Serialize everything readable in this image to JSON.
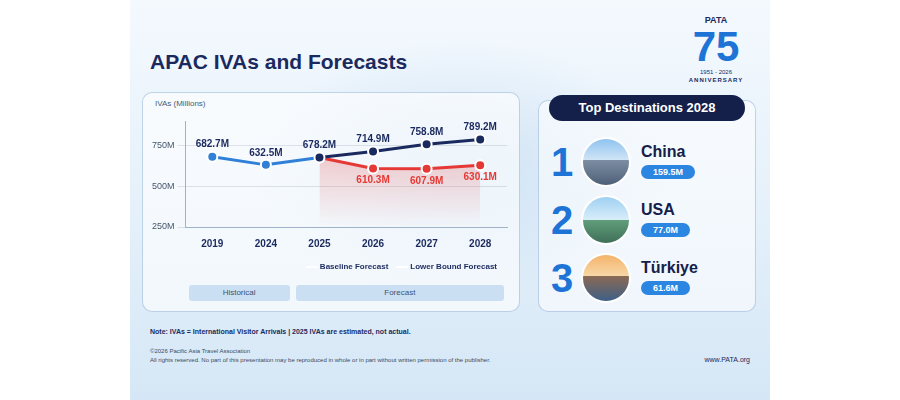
{
  "chart_data": {
    "type": "line",
    "title": "APAC IVAs and Forecasts",
    "y_label": "IVAs (Millions)",
    "categories": [
      "2019",
      "2024",
      "2025",
      "2026",
      "2027",
      "2028"
    ],
    "series": [
      {
        "name": "Baseline Forecast",
        "color": "#1b2a5e",
        "values": [
          682.7,
          632.5,
          678.2,
          714.9,
          758.8,
          789.2
        ],
        "value_labels": [
          "682.7M",
          "632.5M",
          "678.2M",
          "714.9M",
          "758.8M",
          "789.2M"
        ]
      },
      {
        "name": "Lower Bound Forecast",
        "color": "#e53935",
        "values": [
          null,
          null,
          678.2,
          610.3,
          607.9,
          630.1
        ],
        "value_labels": [
          null,
          null,
          null,
          "610.3M",
          "607.9M",
          "630.1M"
        ]
      }
    ],
    "periods": [
      {
        "label": "Historical",
        "categories": [
          "2019",
          "2024"
        ],
        "color": "#2f80d6"
      },
      {
        "label": "Forecast",
        "categories": [
          "2025",
          "2026",
          "2027",
          "2028"
        ]
      }
    ],
    "ylim": [
      250,
      900
    ],
    "yticks": [
      {
        "value": 250,
        "label": "250M"
      },
      {
        "value": 500,
        "label": "500M"
      },
      {
        "value": 750,
        "label": "750M"
      }
    ],
    "grid": true,
    "legend": "bottom",
    "data_labels": true
  },
  "logo": {
    "text": "PATA",
    "number": "75",
    "years": "1951 - 2026",
    "caption": "ANNIVERSARY"
  },
  "top_destinations": {
    "title": "Top Destinations 2028",
    "items": [
      {
        "rank": 1,
        "name": "China",
        "value": "159.5M"
      },
      {
        "rank": 2,
        "name": "USA",
        "value": "77.0M"
      },
      {
        "rank": 3,
        "name": "Türkiye",
        "value": "61.6M"
      }
    ]
  },
  "footer": {
    "note": "Note: IVAs = International Visitor Arrivals  |  2025 IVAs are estimated, not actual.",
    "copyright": "©2026 Pacific Asia Travel Association",
    "rights": "All rights reserved. No part of this presentation may be reproduced in whole or in part without written permission of the publisher.",
    "website": "www.PATA.org"
  }
}
